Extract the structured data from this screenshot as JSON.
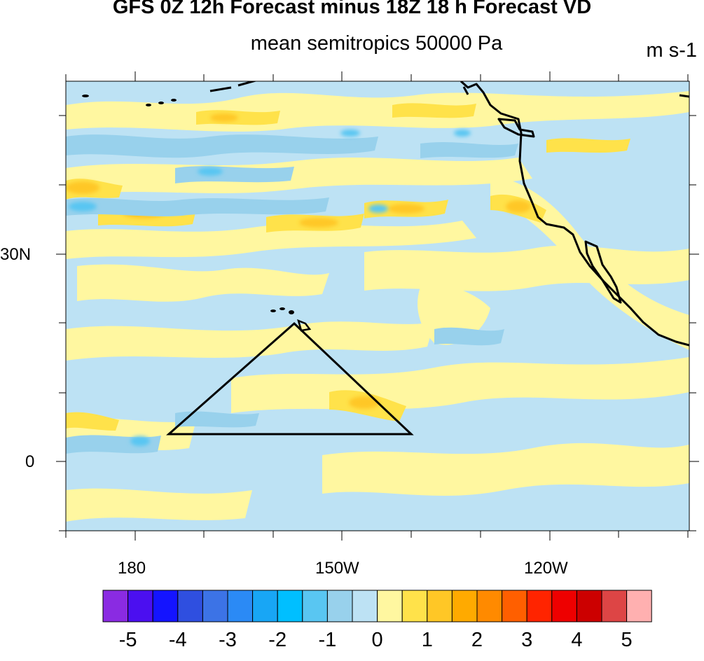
{
  "title": "GFS 0Z 12h Forecast minus 18Z 18 h Forecast VD",
  "subtitle": "mean semitropics 50000 Pa",
  "units": "m s-1",
  "lon_labels": [
    "180",
    "150W",
    "120W"
  ],
  "lat_labels": [
    "30N",
    "0"
  ],
  "colorbar": {
    "labels": [
      "-5",
      "-4",
      "-3",
      "-2",
      "-1",
      "0",
      "1",
      "2",
      "3",
      "4",
      "5"
    ],
    "colors": [
      "#8a2be2",
      "#4b0ff0",
      "#1414ff",
      "#2f4fe0",
      "#3c73e6",
      "#2b8af5",
      "#18a6f5",
      "#00bfff",
      "#59c6f2",
      "#98d1ec",
      "#bde2f4",
      "#fff7a0",
      "#ffe24a",
      "#ffc726",
      "#ffaa00",
      "#ff8a00",
      "#ff5f00",
      "#ff2400",
      "#ee0000",
      "#cc0000",
      "#dd4545",
      "#ffb0b0"
    ]
  },
  "colors": {
    "background_field": "#bde2f4",
    "positive_field": "#fff7a0",
    "positive_medium": "#ffe24a",
    "positive_strong": "#ffc726",
    "negative_medium": "#98d1ec",
    "negative_strong": "#59c6f2"
  }
}
